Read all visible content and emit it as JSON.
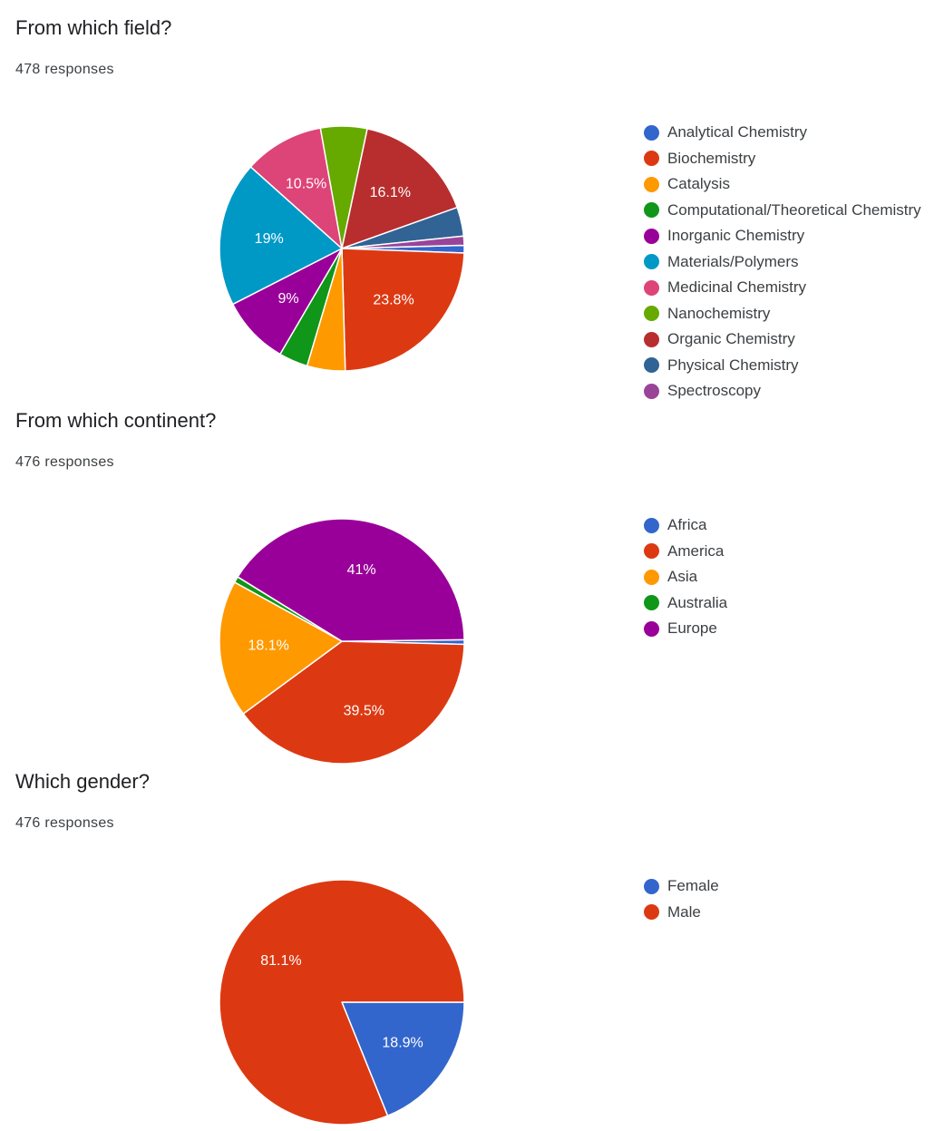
{
  "chart_data": [
    {
      "type": "pie",
      "title": "From which field?",
      "subtitle": "478 responses",
      "legend_position": "right",
      "categories": [
        "Analytical Chemistry",
        "Biochemistry",
        "Catalysis",
        "Computational/Theoretical Chemistry",
        "Inorganic Chemistry",
        "Materials/Polymers",
        "Medicinal Chemistry",
        "Nanochemistry",
        "Organic Chemistry",
        "Physical Chemistry",
        "Spectroscopy"
      ],
      "values": [
        1.0,
        23.8,
        5.0,
        3.8,
        9.0,
        19.0,
        10.5,
        6.1,
        16.1,
        3.8,
        1.2
      ],
      "data_labels": [
        "",
        "23.8%",
        "",
        "",
        "9%",
        "19%",
        "10.5%",
        "",
        "16.1%",
        "",
        ""
      ],
      "colors": [
        "#3366cc",
        "#dc3912",
        "#ff9900",
        "#109618",
        "#990099",
        "#0099c6",
        "#dd4477",
        "#66aa00",
        "#b82e2e",
        "#316395",
        "#994499"
      ]
    },
    {
      "type": "pie",
      "title": "From which continent?",
      "subtitle": "476 responses",
      "legend_position": "right",
      "categories": [
        "Africa",
        "America",
        "Asia",
        "Australia",
        "Europe"
      ],
      "values": [
        0.6,
        39.5,
        18.1,
        0.8,
        41.0
      ],
      "data_labels": [
        "",
        "39.5%",
        "18.1%",
        "",
        "41%"
      ],
      "colors": [
        "#3366cc",
        "#dc3912",
        "#ff9900",
        "#109618",
        "#990099"
      ]
    },
    {
      "type": "pie",
      "title": "Which gender?",
      "subtitle": "476 responses",
      "legend_position": "right",
      "categories": [
        "Female",
        "Male"
      ],
      "values": [
        18.9,
        81.1
      ],
      "data_labels": [
        "18.9%",
        "81.1%"
      ],
      "colors": [
        "#3366cc",
        "#dc3912"
      ]
    }
  ]
}
